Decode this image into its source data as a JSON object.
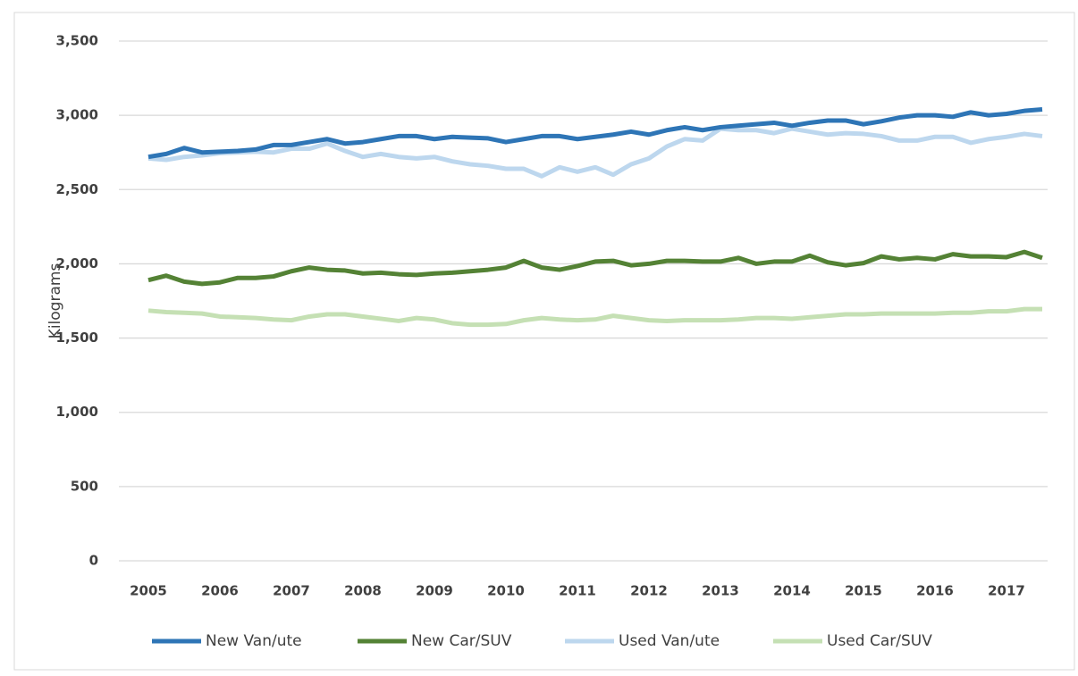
{
  "chart_data": {
    "type": "line",
    "y_label": "Kilograms",
    "categories": [
      "2005",
      null,
      null,
      null,
      "2006",
      null,
      null,
      null,
      "2007",
      null,
      null,
      null,
      "2008",
      null,
      null,
      null,
      "2009",
      null,
      null,
      null,
      "2010",
      null,
      null,
      null,
      "2011",
      null,
      null,
      null,
      "2012",
      null,
      null,
      null,
      "2013",
      null,
      null,
      null,
      "2014",
      null,
      null,
      null,
      "2015",
      null,
      null,
      null,
      "2016",
      null,
      null,
      null,
      "2017",
      null,
      null
    ],
    "series": [
      {
        "name": "New Van/ute",
        "color": "#2e75b6",
        "values": [
          2720,
          2740,
          2780,
          2750,
          2755,
          2760,
          2770,
          2800,
          2800,
          2820,
          2840,
          2810,
          2820,
          2840,
          2860,
          2860,
          2840,
          2855,
          2850,
          2845,
          2820,
          2840,
          2860,
          2860,
          2840,
          2855,
          2870,
          2890,
          2870,
          2900,
          2920,
          2900,
          2920,
          2930,
          2940,
          2950,
          2930,
          2950,
          2965,
          2965,
          2940,
          2960,
          2985,
          3000,
          3000,
          2990,
          3020,
          3000,
          3010,
          3030,
          3040
        ]
      },
      {
        "name": "New Car/SUV",
        "color": "#548235",
        "values": [
          1890,
          1920,
          1880,
          1865,
          1875,
          1905,
          1905,
          1915,
          1950,
          1975,
          1960,
          1955,
          1935,
          1940,
          1930,
          1925,
          1935,
          1940,
          1950,
          1960,
          1975,
          2020,
          1975,
          1960,
          1985,
          2015,
          2020,
          1990,
          2000,
          2020,
          2020,
          2015,
          2015,
          2040,
          2000,
          2015,
          2015,
          2055,
          2010,
          1990,
          2005,
          2050,
          2030,
          2040,
          2030,
          2065,
          2050,
          2050,
          2045,
          2080,
          2040
        ]
      },
      {
        "name": "Used Van/ute",
        "color": "#bdd7ee",
        "values": [
          2710,
          2700,
          2720,
          2730,
          2745,
          2750,
          2755,
          2750,
          2775,
          2775,
          2810,
          2760,
          2720,
          2740,
          2720,
          2710,
          2720,
          2690,
          2670,
          2660,
          2640,
          2640,
          2590,
          2650,
          2620,
          2650,
          2600,
          2670,
          2710,
          2790,
          2840,
          2830,
          2910,
          2900,
          2900,
          2880,
          2910,
          2890,
          2870,
          2880,
          2875,
          2860,
          2830,
          2830,
          2855,
          2855,
          2815,
          2840,
          2855,
          2875,
          2860
        ]
      },
      {
        "name": "Used Car/SUV",
        "color": "#c5e0b4",
        "values": [
          1685,
          1675,
          1670,
          1665,
          1645,
          1640,
          1635,
          1625,
          1620,
          1645,
          1660,
          1660,
          1645,
          1630,
          1615,
          1635,
          1625,
          1600,
          1590,
          1590,
          1595,
          1620,
          1635,
          1625,
          1620,
          1625,
          1650,
          1635,
          1620,
          1615,
          1620,
          1620,
          1620,
          1625,
          1635,
          1635,
          1630,
          1640,
          1650,
          1660,
          1660,
          1665,
          1665,
          1665,
          1665,
          1670,
          1670,
          1680,
          1680,
          1695,
          1695
        ]
      }
    ],
    "ylim": [
      0,
      3500
    ],
    "yticks": [
      0,
      500,
      {
        "value": 1000,
        "label": "1,000"
      },
      {
        "value": 1500,
        "label": "1,500"
      },
      {
        "value": 2000,
        "label": "2,000"
      },
      {
        "value": 2500,
        "label": "2,500"
      },
      {
        "value": 3000,
        "label": "3,000"
      },
      {
        "value": 3500,
        "label": "3,500"
      }
    ],
    "grid": true,
    "legend": "bottom"
  }
}
